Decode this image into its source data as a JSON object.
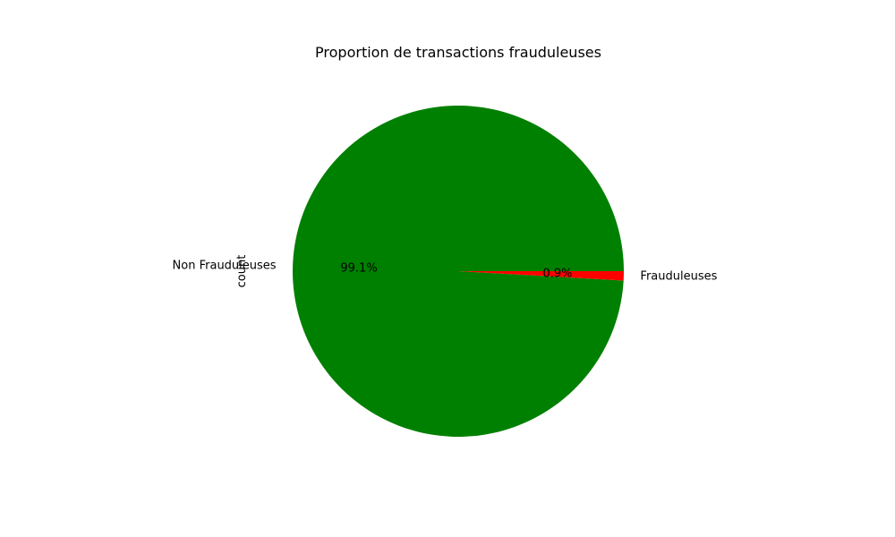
{
  "chart_data": {
    "type": "pie",
    "title": "Proportion de transactions frauduleuses",
    "ylabel": "count",
    "categories": [
      "Non Frauduleuses",
      "Frauduleuses"
    ],
    "values": [
      99.1,
      0.9
    ],
    "percent_labels": [
      "99.1%",
      "0.9%"
    ],
    "colors": [
      "#008000",
      "#ff0000"
    ],
    "start_angle_deg": 0,
    "direction": "counterclockwise"
  }
}
